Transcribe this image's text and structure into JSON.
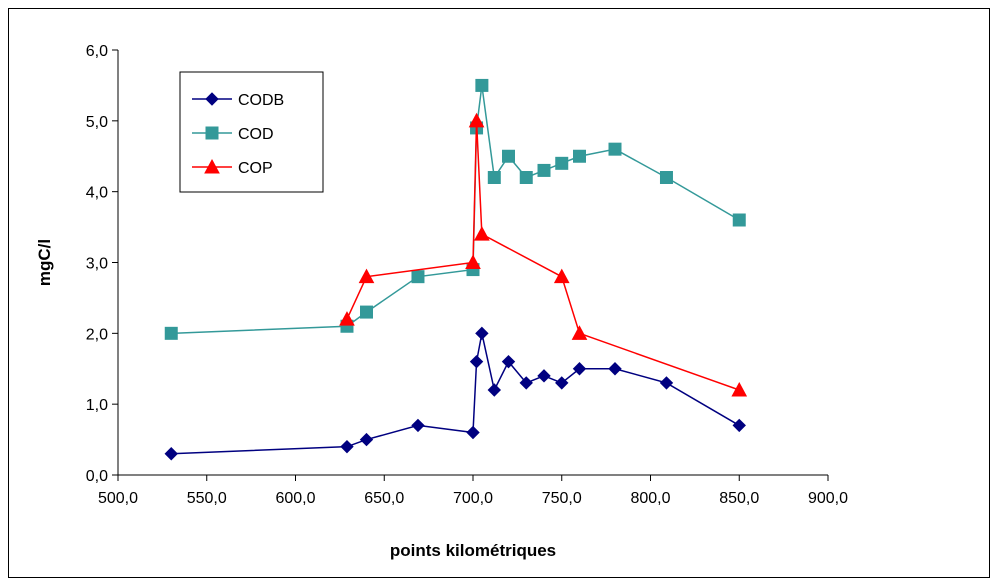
{
  "chart_data": {
    "type": "line",
    "title": "",
    "xlabel": "points kilométriques",
    "ylabel": "mgC/l",
    "xlim": [
      500,
      900
    ],
    "ylim": [
      0,
      6
    ],
    "x_ticks": [
      500,
      550,
      600,
      650,
      700,
      750,
      800,
      850,
      900
    ],
    "x_tick_labels": [
      "500,0",
      "550,0",
      "600,0",
      "650,0",
      "700,0",
      "750,0",
      "800,0",
      "850,0",
      "900,0"
    ],
    "y_ticks": [
      0,
      1,
      2,
      3,
      4,
      5,
      6
    ],
    "y_tick_labels": [
      "0,0",
      "1,0",
      "2,0",
      "3,0",
      "4,0",
      "5,0",
      "6,0"
    ],
    "grid": false,
    "legend_position": "top-left",
    "series": [
      {
        "name": "CODB",
        "color": "#000080",
        "marker": "diamond",
        "x": [
          530,
          629,
          640,
          669,
          700,
          702,
          705,
          712,
          720,
          730,
          740,
          750,
          760,
          780,
          809,
          850
        ],
        "y": [
          0.3,
          0.4,
          0.5,
          0.7,
          0.6,
          1.6,
          2.0,
          1.2,
          1.6,
          1.3,
          1.4,
          1.3,
          1.5,
          1.5,
          1.3,
          0.7
        ]
      },
      {
        "name": "COD",
        "color": "#339999",
        "marker": "square",
        "x": [
          530,
          629,
          640,
          669,
          700,
          702,
          705,
          712,
          720,
          730,
          740,
          750,
          760,
          780,
          809,
          850
        ],
        "y": [
          2.0,
          2.1,
          2.3,
          2.8,
          2.9,
          4.9,
          5.5,
          4.2,
          4.5,
          4.2,
          4.3,
          4.4,
          4.5,
          4.6,
          4.2,
          3.6
        ]
      },
      {
        "name": "COP",
        "color": "#ff0000",
        "marker": "triangle",
        "x": [
          629,
          640,
          700,
          702,
          705,
          750,
          760,
          850
        ],
        "y": [
          2.2,
          2.8,
          3.0,
          5.0,
          3.4,
          2.8,
          2.0,
          1.2
        ]
      }
    ]
  }
}
